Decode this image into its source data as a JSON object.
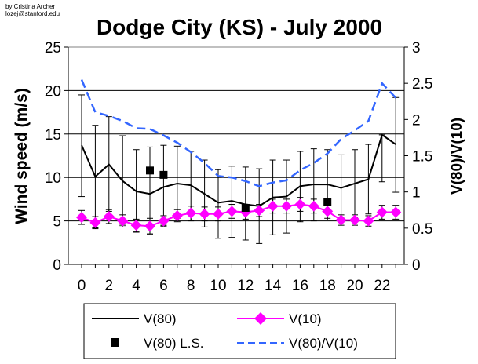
{
  "credit": [
    "by Cristina Archer",
    "lozej@stanford.edu"
  ],
  "chart_data": {
    "type": "line",
    "title": "Dodge City (KS) - July 2000",
    "xlabel": "",
    "ylabel": "Wind speed (m/s)",
    "y2label": "V(80)/V(10)",
    "x": [
      0,
      1,
      2,
      3,
      4,
      5,
      6,
      7,
      8,
      9,
      10,
      11,
      12,
      13,
      14,
      15,
      16,
      17,
      18,
      19,
      20,
      21,
      22,
      23
    ],
    "xticks": [
      "0",
      "2",
      "4",
      "6",
      "8",
      "10",
      "12",
      "14",
      "16",
      "18",
      "20",
      "22"
    ],
    "ylim": [
      0,
      25
    ],
    "yticks": [
      "0",
      "5",
      "10",
      "15",
      "20",
      "25"
    ],
    "y2lim": [
      0,
      3
    ],
    "y2ticks": [
      "0",
      "0.5",
      "1",
      "1.5",
      "2",
      "2.5",
      "3"
    ],
    "grid": "horizontal",
    "series": [
      {
        "name": "V(80)",
        "axis": "left",
        "style": "solid",
        "color": "#000000",
        "values": [
          13.7,
          10.1,
          11.5,
          9.6,
          8.4,
          8.1,
          8.9,
          9.3,
          9.1,
          8.1,
          7.1,
          7.3,
          6.9,
          6.7,
          7.7,
          7.8,
          9.0,
          9.2,
          9.2,
          8.8,
          9.3,
          9.8,
          14.9,
          13.8
        ],
        "error_low": [
          7.8,
          4.2,
          6.1,
          4.5,
          3.7,
          3.5,
          4.5,
          5.3,
          5.0,
          4.3,
          3.0,
          3.1,
          2.8,
          2.4,
          3.4,
          3.6,
          4.9,
          5.0,
          5.1,
          5.0,
          5.4,
          5.8,
          9.5,
          8.3
        ],
        "error_high": [
          19.5,
          16.0,
          17.0,
          14.8,
          13.2,
          13.5,
          13.7,
          13.6,
          13.0,
          12.0,
          10.9,
          11.3,
          11.2,
          11.0,
          12.0,
          12.0,
          13.0,
          13.3,
          13.2,
          12.6,
          13.2,
          13.8,
          14.9,
          19.2
        ]
      },
      {
        "name": "V(10)",
        "axis": "left",
        "style": "diamond-markers",
        "color": "#ff00ff",
        "values": [
          5.4,
          4.8,
          5.5,
          5.0,
          4.5,
          4.4,
          5.0,
          5.6,
          5.9,
          5.8,
          5.8,
          6.1,
          6.0,
          6.2,
          6.7,
          6.7,
          6.9,
          6.7,
          6.1,
          5.1,
          5.1,
          5.0,
          6.0,
          6.0
        ],
        "error_low": [
          4.6,
          4.1,
          4.7,
          4.3,
          3.8,
          3.5,
          4.4,
          4.9,
          5.1,
          5.0,
          5.0,
          5.3,
          5.2,
          5.5,
          5.9,
          5.9,
          6.1,
          5.9,
          5.3,
          4.5,
          4.5,
          4.4,
          5.2,
          5.2
        ],
        "error_high": [
          6.2,
          5.5,
          6.3,
          5.7,
          5.2,
          5.3,
          5.6,
          6.3,
          6.7,
          6.6,
          6.6,
          6.9,
          6.8,
          6.9,
          7.5,
          7.5,
          7.7,
          7.5,
          6.9,
          5.7,
          5.7,
          5.6,
          6.8,
          6.8
        ]
      },
      {
        "name": "V(80) L.S.",
        "axis": "left",
        "style": "square-markers",
        "color": "#000000",
        "x": [
          5,
          6,
          12,
          18
        ],
        "values": [
          10.8,
          10.3,
          6.5,
          7.2
        ]
      },
      {
        "name": "V(80)/V(10)",
        "axis": "right",
        "style": "dashed",
        "color": "#3366ff",
        "values": [
          2.55,
          2.1,
          2.05,
          1.98,
          1.88,
          1.87,
          1.78,
          1.68,
          1.55,
          1.4,
          1.22,
          1.2,
          1.15,
          1.08,
          1.13,
          1.16,
          1.3,
          1.4,
          1.53,
          1.73,
          1.85,
          1.98,
          2.5,
          2.3
        ]
      }
    ],
    "legend": {
      "placement": "bottom",
      "entries": [
        "V(80)",
        "V(10)",
        "V(80) L.S.",
        "V(80)/V(10)"
      ]
    }
  }
}
